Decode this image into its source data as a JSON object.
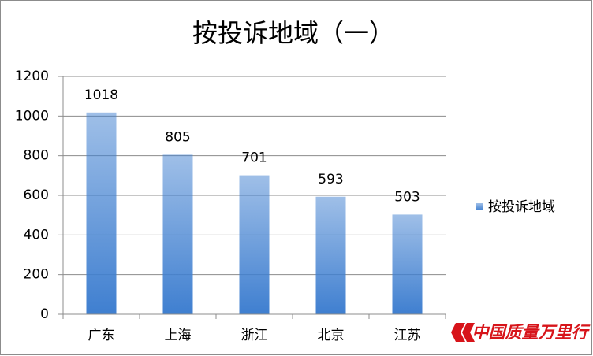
{
  "chart_data": {
    "type": "bar",
    "title": "按投诉地域（一）",
    "categories": [
      "广东",
      "上海",
      "浙江",
      "北京",
      "江苏"
    ],
    "series": [
      {
        "name": "按投诉地域",
        "color": "#3f7fd0",
        "values": [
          1018,
          805,
          701,
          593,
          503
        ]
      }
    ],
    "ylim": [
      0,
      1200
    ],
    "yticks": [
      0,
      200,
      400,
      600,
      800,
      1000,
      1200
    ],
    "grid": true,
    "legend": "right",
    "watermark": "中国质量万里行"
  }
}
